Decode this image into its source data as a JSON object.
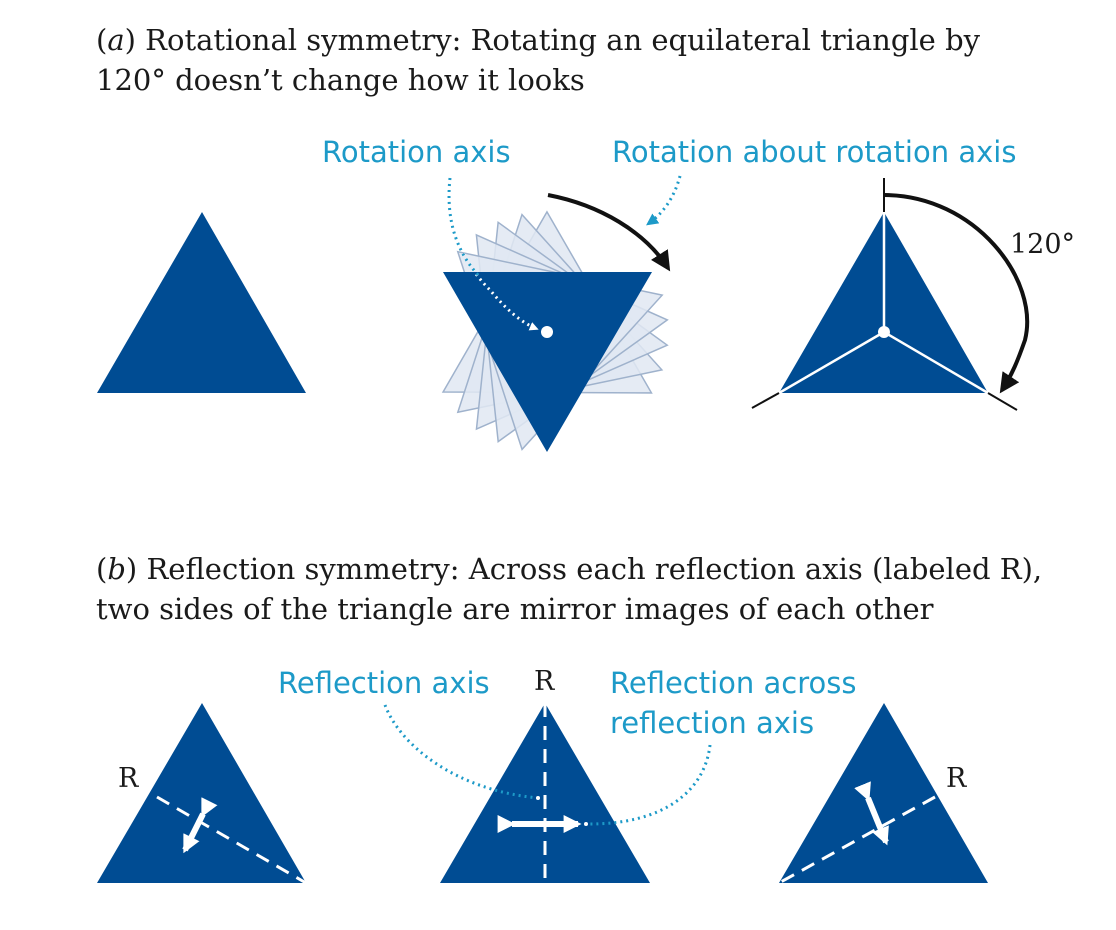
{
  "part_a": {
    "caption_letter": "a",
    "caption_text": "Rotational symmetry: Rotating an equilateral triangle by 120° doesn’t change how it looks",
    "label_rotation_axis": "Rotation axis",
    "label_rotation_about": "Rotation about rotation axis",
    "label_angle": "120°"
  },
  "part_b": {
    "caption_letter": "b",
    "caption_text": "Reflection symmetry: Across each reflection axis (labeled R), two sides of the triangle are mirror images of each other",
    "label_reflection_axis": "Reflection axis",
    "label_reflection_across_line1": "Reflection across",
    "label_reflection_across_line2": "reflection axis",
    "axis_label": "R"
  },
  "colors": {
    "triangle_fill": "#004c93",
    "label_color": "#1d9ac8",
    "ghost_fill": "#dfe7f2",
    "arrow_color": "#111111"
  }
}
